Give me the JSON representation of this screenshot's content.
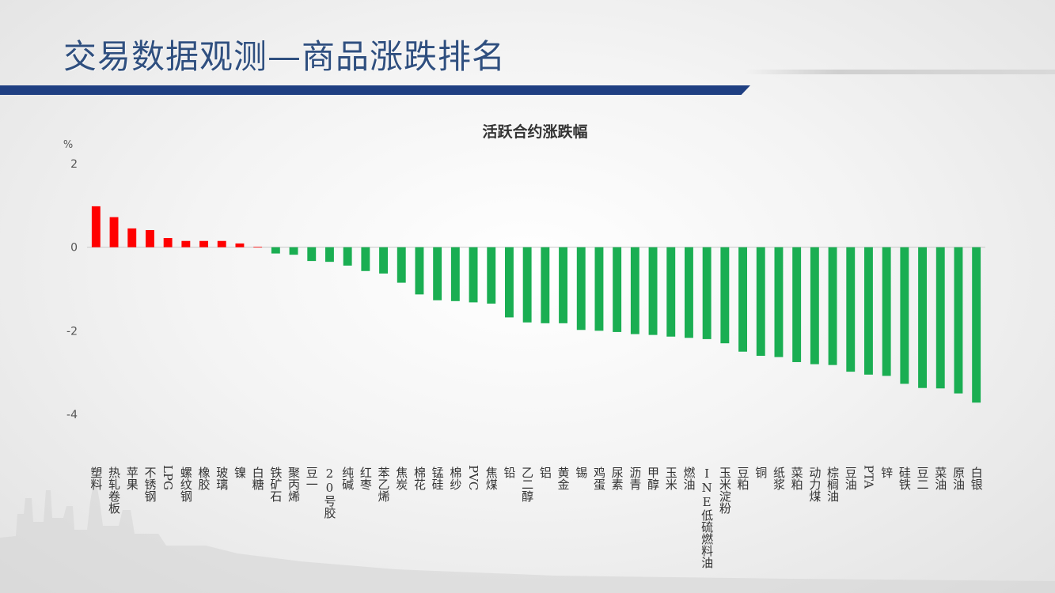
{
  "slide": {
    "title": "交易数据观测—商品涨跌排名"
  },
  "colors": {
    "title_bar": "#1f3f82",
    "up": "#ff0000",
    "down": "#1aae52"
  },
  "chart_data": {
    "type": "bar",
    "title": "活跃合约涨跌幅",
    "ylabel": "%",
    "ylim": [
      -4,
      2
    ],
    "yticks": [
      2,
      0,
      -2,
      -4
    ],
    "grid": false,
    "legend": "none",
    "categories": [
      "塑料",
      "热轧卷板",
      "苹果",
      "不锈钢",
      "LPG",
      "螺纹钢",
      "橡胶",
      "玻璃",
      "镍",
      "白糖",
      "铁矿石",
      "聚丙烯",
      "豆一",
      "20号胶",
      "纯碱",
      "红枣",
      "苯乙烯",
      "焦炭",
      "棉花",
      "锰硅",
      "棉纱",
      "PVC",
      "焦煤",
      "铅",
      "乙二醇",
      "铝",
      "黄金",
      "锡",
      "鸡蛋",
      "尿素",
      "沥青",
      "甲醇",
      "玉米",
      "燃油",
      "INE低硫燃料油",
      "玉米淀粉",
      "豆粕",
      "铜",
      "纸浆",
      "菜粕",
      "动力煤",
      "棕榈油",
      "豆油",
      "PTA",
      "锌",
      "硅铁",
      "豆二",
      "菜油",
      "原油",
      "白银"
    ],
    "values": [
      0.98,
      0.72,
      0.45,
      0.41,
      0.22,
      0.15,
      0.15,
      0.15,
      0.09,
      0.01,
      -0.15,
      -0.18,
      -0.33,
      -0.35,
      -0.44,
      -0.57,
      -0.63,
      -0.85,
      -1.13,
      -1.27,
      -1.29,
      -1.32,
      -1.35,
      -1.68,
      -1.8,
      -1.82,
      -1.82,
      -1.98,
      -2.0,
      -2.03,
      -2.08,
      -2.1,
      -2.14,
      -2.17,
      -2.2,
      -2.3,
      -2.5,
      -2.6,
      -2.63,
      -2.75,
      -2.8,
      -2.82,
      -2.98,
      -3.05,
      -3.08,
      -3.27,
      -3.37,
      -3.38,
      -3.5,
      -3.72
    ]
  }
}
